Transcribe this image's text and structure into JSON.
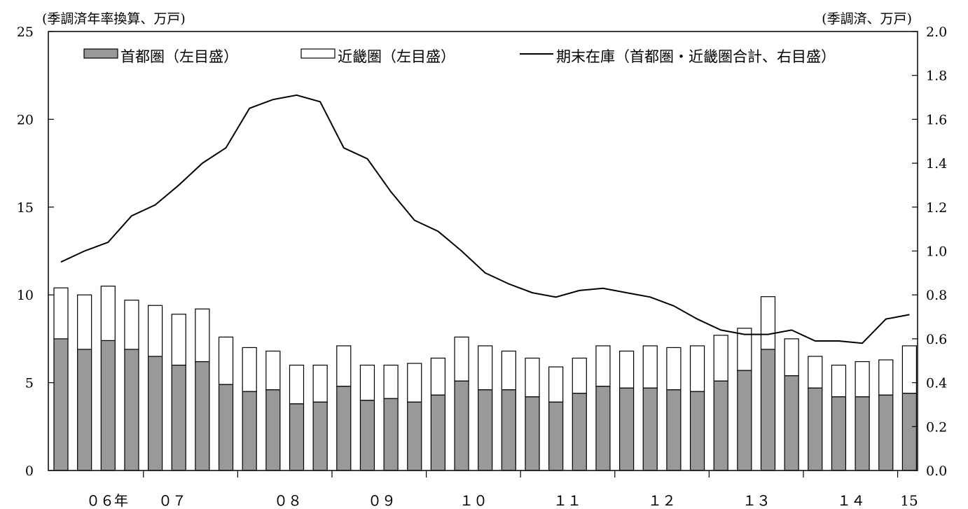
{
  "chart_data": {
    "type": "bar",
    "title": "",
    "left_axis_label": "(季調済年率換算、万戸)",
    "right_axis_label": "(季調済、万戸)",
    "ylim_left": [
      0,
      25
    ],
    "ylim_right": [
      0.0,
      2.0
    ],
    "left_ticks": [
      "0",
      "5",
      "10",
      "15",
      "20",
      "25"
    ],
    "right_ticks": [
      "0.0",
      "0.2",
      "0.4",
      "0.6",
      "0.8",
      "1.0",
      "1.2",
      "1.4",
      "1.6",
      "1.8",
      "2.0"
    ],
    "x_labels": [
      "０６年",
      "０７",
      "０８",
      "０９",
      "１０",
      "１１",
      "１２",
      "１３",
      "１４",
      "15"
    ],
    "legend": {
      "placement": "top",
      "items": [
        "首都圏（左目盛）",
        "近畿圏（左目盛）",
        "期末在庫（首都圏・近畿圏合計、右目盛）"
      ]
    },
    "series": [
      {
        "name": "首都圏（左目盛）",
        "type": "stacked-bar",
        "axis": "left",
        "color": "#999999",
        "values": [
          7.5,
          6.9,
          7.4,
          6.9,
          6.5,
          6.0,
          6.2,
          4.9,
          4.5,
          4.6,
          3.8,
          3.9,
          4.8,
          4.0,
          4.1,
          3.9,
          4.3,
          5.1,
          4.6,
          4.6,
          4.2,
          3.9,
          4.4,
          4.8,
          4.7,
          4.7,
          4.6,
          4.5,
          5.1,
          5.7,
          6.9,
          5.4,
          4.7,
          4.2,
          4.2,
          4.3,
          4.4
        ]
      },
      {
        "name": "近畿圏（左目盛）",
        "type": "stacked-bar",
        "axis": "left",
        "color": "#ffffff",
        "values": [
          2.9,
          3.1,
          3.1,
          2.8,
          2.9,
          2.9,
          3.0,
          2.7,
          2.5,
          2.2,
          2.2,
          2.1,
          2.3,
          2.0,
          1.9,
          2.2,
          2.1,
          2.5,
          2.5,
          2.2,
          2.2,
          2.0,
          2.0,
          2.3,
          2.1,
          2.4,
          2.4,
          2.6,
          2.6,
          2.4,
          3.0,
          2.1,
          1.8,
          1.8,
          2.0,
          2.0,
          2.7
        ]
      },
      {
        "name": "期末在庫（首都圏・近畿圏合計、右目盛）",
        "type": "line",
        "axis": "right",
        "color": "#000000",
        "values": [
          0.95,
          1.0,
          1.04,
          1.16,
          1.21,
          1.3,
          1.4,
          1.47,
          1.65,
          1.69,
          1.71,
          1.68,
          1.47,
          1.42,
          1.27,
          1.14,
          1.09,
          1.0,
          0.9,
          0.85,
          0.81,
          0.79,
          0.82,
          0.83,
          0.81,
          0.79,
          0.75,
          0.69,
          0.64,
          0.62,
          0.62,
          0.64,
          0.59,
          0.59,
          0.58,
          0.69,
          0.71
        ]
      }
    ]
  }
}
